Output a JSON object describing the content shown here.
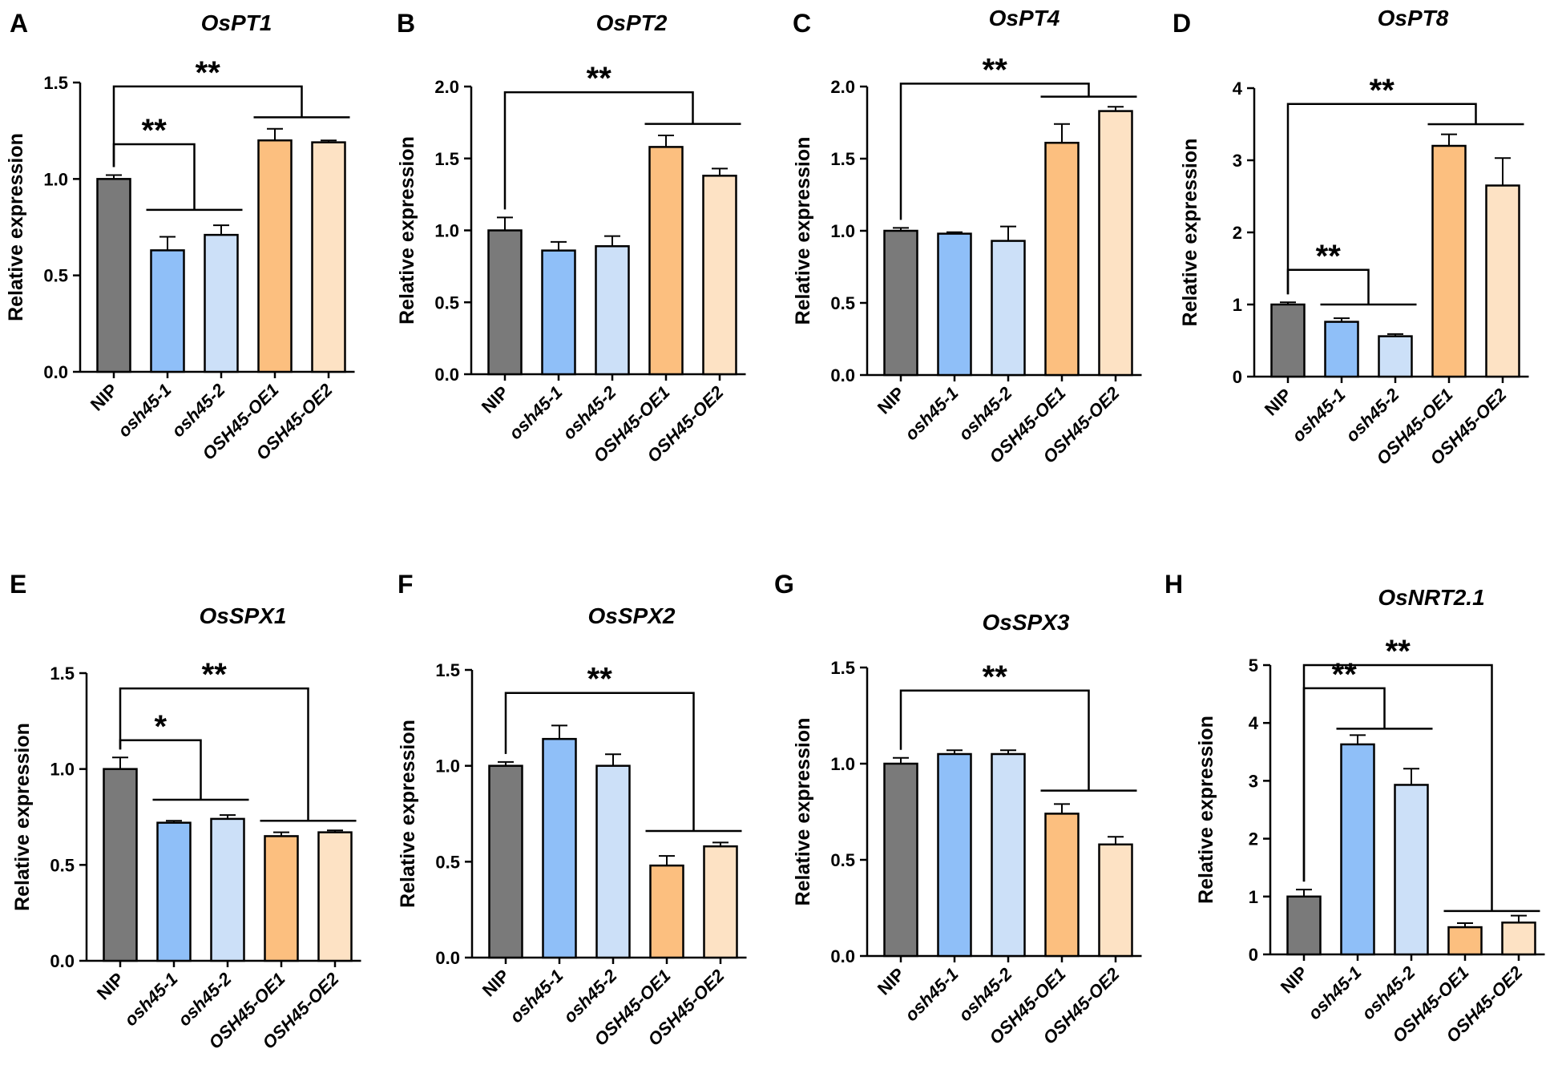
{
  "figure": {
    "ylabel": "Relative expression",
    "categories": [
      "NIP",
      "osh45-1",
      "osh45-2",
      "OSH45-OE1",
      "OSH45-OE2"
    ],
    "colors": [
      "#7a7a7a",
      "#8fbff8",
      "#cce0f8",
      "#fcbf7f",
      "#fde2c4"
    ]
  },
  "chart_data": [
    {
      "type": "bar",
      "panel": "A",
      "title": "OsPT1",
      "categories": [
        "NIP",
        "osh45-1",
        "osh45-2",
        "OSH45-OE1",
        "OSH45-OE2"
      ],
      "values": [
        1.0,
        0.63,
        0.71,
        1.2,
        1.19
      ],
      "errors": [
        0.02,
        0.07,
        0.05,
        0.06,
        0.01
      ],
      "ylabel": "Relative expression",
      "ylim": [
        0,
        1.5
      ],
      "yticks": [
        0,
        0.5,
        1.0,
        1.5
      ],
      "ytick_labels": [
        "0.0",
        "0.5",
        "1.0",
        "1.5"
      ],
      "annotations": [
        {
          "label": "**",
          "ref": 0,
          "targets": [
            3,
            4
          ],
          "level": 1.48,
          "target_level": 1.32
        },
        {
          "label": "**",
          "ref": 0,
          "targets": [
            1,
            2
          ],
          "level": 1.18,
          "target_level": 0.84
        }
      ]
    },
    {
      "type": "bar",
      "panel": "B",
      "title": "OsPT2",
      "categories": [
        "NIP",
        "osh45-1",
        "osh45-2",
        "OSH45-OE1",
        "OSH45-OE2"
      ],
      "values": [
        1.0,
        0.86,
        0.89,
        1.58,
        1.38
      ],
      "errors": [
        0.09,
        0.06,
        0.07,
        0.08,
        0.05
      ],
      "ylabel": "Relative expression",
      "ylim": [
        0,
        2.0
      ],
      "yticks": [
        0,
        0.5,
        1.0,
        1.5,
        2.0
      ],
      "ytick_labels": [
        "0.0",
        "0.5",
        "1.0",
        "1.5",
        "2.0"
      ],
      "annotations": [
        {
          "label": "**",
          "ref": 0,
          "targets": [
            3,
            4
          ],
          "level": 1.96,
          "target_level": 1.74
        }
      ]
    },
    {
      "type": "bar",
      "panel": "C",
      "title": "OsPT4",
      "categories": [
        "NIP",
        "osh45-1",
        "osh45-2",
        "OSH45-OE1",
        "OSH45-OE2"
      ],
      "values": [
        1.0,
        0.98,
        0.93,
        1.61,
        1.83
      ],
      "errors": [
        0.02,
        0.01,
        0.1,
        0.13,
        0.03
      ],
      "ylabel": "Relative expression",
      "ylim": [
        0,
        2.0
      ],
      "yticks": [
        0,
        0.5,
        1.0,
        1.5,
        2.0
      ],
      "ytick_labels": [
        "0.0",
        "0.5",
        "1.0",
        "1.5",
        "2.0"
      ],
      "annotations": [
        {
          "label": "**",
          "ref": 0,
          "targets": [
            3,
            4
          ],
          "level": 2.02,
          "target_level": 1.93
        }
      ]
    },
    {
      "type": "bar",
      "panel": "D",
      "title": "OsPT8",
      "categories": [
        "NIP",
        "osh45-1",
        "osh45-2",
        "OSH45-OE1",
        "OSH45-OE2"
      ],
      "values": [
        1.0,
        0.76,
        0.56,
        3.2,
        2.65
      ],
      "errors": [
        0.03,
        0.05,
        0.03,
        0.16,
        0.38
      ],
      "ylabel": "Relative expression",
      "ylim": [
        0,
        4
      ],
      "yticks": [
        0,
        1,
        2,
        3,
        4
      ],
      "ytick_labels": [
        "0",
        "1",
        "2",
        "3",
        "4"
      ],
      "annotations": [
        {
          "label": "**",
          "ref": 0,
          "targets": [
            3,
            4
          ],
          "level": 3.78,
          "target_level": 3.5
        },
        {
          "label": "**",
          "ref": 0,
          "targets": [
            1,
            2
          ],
          "level": 1.48,
          "target_level": 1.0
        }
      ]
    },
    {
      "type": "bar",
      "panel": "E",
      "title": "OsSPX1",
      "categories": [
        "NIP",
        "osh45-1",
        "osh45-2",
        "OSH45-OE1",
        "OSH45-OE2"
      ],
      "values": [
        1.0,
        0.72,
        0.74,
        0.65,
        0.67
      ],
      "errors": [
        0.06,
        0.01,
        0.02,
        0.02,
        0.01
      ],
      "ylabel": "Relative expression",
      "ylim": [
        0,
        1.5
      ],
      "yticks": [
        0,
        0.5,
        1.0,
        1.5
      ],
      "ytick_labels": [
        "0.0",
        "0.5",
        "1.0",
        "1.5"
      ],
      "annotations": [
        {
          "label": "**",
          "ref": 0,
          "targets": [
            3,
            4
          ],
          "level": 1.42,
          "target_level": 0.73
        },
        {
          "label": "*",
          "ref": 0,
          "targets": [
            1,
            2
          ],
          "level": 1.15,
          "target_level": 0.84
        }
      ]
    },
    {
      "type": "bar",
      "panel": "F",
      "title": "OsSPX2",
      "categories": [
        "NIP",
        "osh45-1",
        "osh45-2",
        "OSH45-OE1",
        "OSH45-OE2"
      ],
      "values": [
        1.0,
        1.14,
        1.0,
        0.48,
        0.58
      ],
      "errors": [
        0.02,
        0.07,
        0.06,
        0.05,
        0.02
      ],
      "ylabel": "Relative expression",
      "ylim": [
        0,
        1.5
      ],
      "yticks": [
        0,
        0.5,
        1.0,
        1.5
      ],
      "ytick_labels": [
        "0.0",
        "0.5",
        "1.0",
        "1.5"
      ],
      "annotations": [
        {
          "label": "**",
          "ref": 0,
          "targets": [
            3,
            4
          ],
          "level": 1.38,
          "target_level": 0.66
        }
      ]
    },
    {
      "type": "bar",
      "panel": "G",
      "title": "OsSPX3",
      "categories": [
        "NIP",
        "osh45-1",
        "osh45-2",
        "OSH45-OE1",
        "OSH45-OE2"
      ],
      "values": [
        1.0,
        1.05,
        1.05,
        0.74,
        0.58
      ],
      "errors": [
        0.03,
        0.02,
        0.02,
        0.05,
        0.04
      ],
      "ylabel": "Relative expression",
      "ylim": [
        0,
        1.5
      ],
      "yticks": [
        0,
        0.5,
        1.0,
        1.5
      ],
      "ytick_labels": [
        "0.0",
        "0.5",
        "1.0",
        "1.5"
      ],
      "annotations": [
        {
          "label": "**",
          "ref": 0,
          "targets": [
            3,
            4
          ],
          "level": 1.38,
          "target_level": 0.86
        }
      ]
    },
    {
      "type": "bar",
      "panel": "H",
      "title": "OsNRT2.1",
      "categories": [
        "NIP",
        "osh45-1",
        "osh45-2",
        "OSH45-OE1",
        "OSH45-OE2"
      ],
      "values": [
        1.0,
        3.63,
        2.93,
        0.47,
        0.55
      ],
      "errors": [
        0.12,
        0.16,
        0.28,
        0.07,
        0.12
      ],
      "ylabel": "Relative expression",
      "ylim": [
        0,
        5
      ],
      "yticks": [
        0,
        1,
        2,
        3,
        4,
        5
      ],
      "ytick_labels": [
        "0",
        "1",
        "2",
        "3",
        "4",
        "5"
      ],
      "annotations": [
        {
          "label": "**",
          "ref": 0,
          "targets": [
            3,
            4
          ],
          "level": 5.0,
          "target_level": 0.75
        },
        {
          "label": "**",
          "ref": 0,
          "targets": [
            1,
            2
          ],
          "level": 4.6,
          "target_level": 3.9
        }
      ]
    }
  ]
}
